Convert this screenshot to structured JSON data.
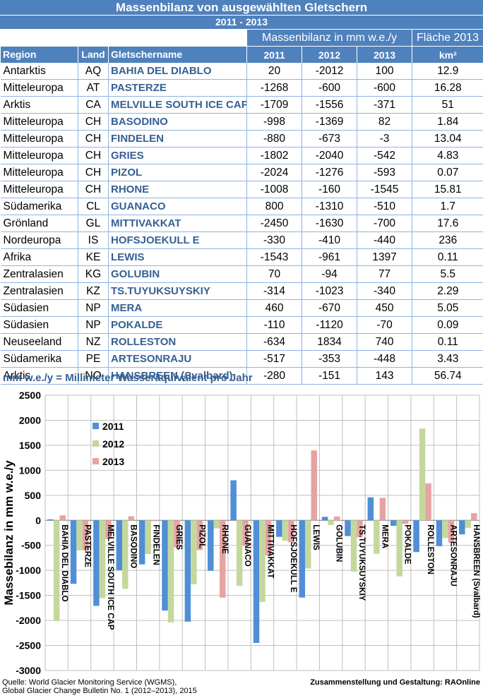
{
  "header": {
    "title": "Massenbilanz von ausgewählten Gletschern",
    "period": "2011 - 2013"
  },
  "table": {
    "group_mass": "Massenbilanz in mm w.e./y",
    "group_area": "Fläche 2013",
    "columns": [
      "Region",
      "Land",
      "Gletschername",
      "2011",
      "2012",
      "2013",
      "km²"
    ],
    "rows": [
      [
        "Antarktis",
        "AQ",
        "BAHIA DEL DIABLO",
        "20",
        "-2012",
        "100",
        "12.9"
      ],
      [
        "Mitteleuropa",
        "AT",
        "PASTERZE",
        "-1268",
        "-600",
        "-600",
        "16.28"
      ],
      [
        "Arktis",
        "CA",
        "MELVILLE SOUTH ICE CAP",
        "-1709",
        "-1556",
        "-371",
        "51"
      ],
      [
        "Mitteleuropa",
        "CH",
        "BASODINO",
        "-998",
        "-1369",
        "82",
        "1.84"
      ],
      [
        "Mitteleuropa",
        "CH",
        "FINDELEN",
        "-880",
        "-673",
        "-3",
        "13.04"
      ],
      [
        "Mitteleuropa",
        "CH",
        "GRIES",
        "-1802",
        "-2040",
        "-542",
        "4.83"
      ],
      [
        "Mitteleuropa",
        "CH",
        "PIZOL",
        "-2024",
        "-1276",
        "-593",
        "0.07"
      ],
      [
        "Mitteleuropa",
        "CH",
        "RHONE",
        "-1008",
        "-160",
        "-1545",
        "15.81"
      ],
      [
        "Südamerika",
        "CL",
        "GUANACO",
        "800",
        "-1310",
        "-510",
        "1.7"
      ],
      [
        "Grönland",
        "GL",
        "MITTIVAKKAT",
        "-2450",
        "-1630",
        "-700",
        "17.6"
      ],
      [
        "Nordeuropa",
        "IS",
        "HOFSJOEKULL E",
        "-330",
        "-410",
        "-440",
        "236"
      ],
      [
        "Afrika",
        "KE",
        "LEWIS",
        "-1543",
        "-961",
        "1397",
        "0.11"
      ],
      [
        "Zentralasien",
        "KG",
        "GOLUBIN",
        "70",
        "-94",
        "77",
        "5.5"
      ],
      [
        "Zentralasien",
        "KZ",
        "TS.TUYUKSUYSKIY",
        "-314",
        "-1023",
        "-340",
        "2.29"
      ],
      [
        "Südasien",
        "NP",
        "MERA",
        "460",
        "-670",
        "450",
        "5.05"
      ],
      [
        "Südasien",
        "NP",
        "POKALDE",
        "-110",
        "-1120",
        "-70",
        "0.09"
      ],
      [
        "Neuseeland",
        "NZ",
        "ROLLESTON",
        "-634",
        "1834",
        "740",
        "0.11"
      ],
      [
        "Südamerika",
        "PE",
        "ARTESONRAJU",
        "-517",
        "-353",
        "-448",
        "3.43"
      ],
      [
        "Arktis",
        "NO",
        "HANSBREEN (Svalbard)",
        "-280",
        "-151",
        "143",
        "56.74"
      ]
    ]
  },
  "caption": "mm w.e./y = Millimeter Wasseräquivalent pro Jahr",
  "chart_data": {
    "type": "bar",
    "ylabel": "Massebilanz in mm w.e./y",
    "ylim": [
      -3000,
      2500
    ],
    "yticks": [
      "2500",
      "2000",
      "1500",
      "1000",
      "500",
      "0",
      "-500",
      "-1000",
      "-1500",
      "-2000",
      "-2500",
      "-3000"
    ],
    "grid": true,
    "legend_position": "top-left",
    "categories": [
      "BAHIA DEL DIABLO",
      "PASTERZE",
      "MELVILLE SOUTH ICE CAP",
      "BASODINO",
      "FINDELEN",
      "GRIES",
      "PIZOL",
      "RHONE",
      "GUANACO",
      "MITTIVAKKAT",
      "HOFSJOEKULL E",
      "LEWIS",
      "GOLUBIN",
      "TS.TUYUKSUYSKIY",
      "MERA",
      "POKALDE",
      "ROLLESTON",
      "ARTESONRAJU",
      "HANSBREEN (Svalbard)"
    ],
    "series": [
      {
        "name": "2011",
        "color": "#4f8fd8",
        "values": [
          20,
          -1268,
          -1709,
          -998,
          -880,
          -1802,
          -2024,
          -1008,
          800,
          -2450,
          -330,
          -1543,
          70,
          -314,
          460,
          -110,
          -634,
          -517,
          -280
        ]
      },
      {
        "name": "2012",
        "color": "#c4d89c",
        "values": [
          -2012,
          -600,
          -1556,
          -1369,
          -673,
          -2040,
          -1276,
          -160,
          -1310,
          -1630,
          -410,
          -961,
          -94,
          -1023,
          -670,
          -1120,
          1834,
          -353,
          -151
        ]
      },
      {
        "name": "2013",
        "color": "#e6a3a3",
        "values": [
          100,
          -600,
          -371,
          82,
          -3,
          -542,
          -593,
          -1545,
          -510,
          -700,
          -440,
          1397,
          77,
          -340,
          450,
          -70,
          740,
          -448,
          143
        ]
      }
    ]
  },
  "footer": {
    "source_line1": "Quelle:  World Glacier Monitoring Service (WGMS),",
    "source_line2": "Global Glacier Change Bulletin No. 1 (2012–2013), 2015",
    "credit": "Zusammenstellung und Gestaltung: RAOnline"
  },
  "colors": {
    "header_blue": "#4f81bd",
    "name_blue": "#366092",
    "grid_line": "#8eb4e3"
  }
}
